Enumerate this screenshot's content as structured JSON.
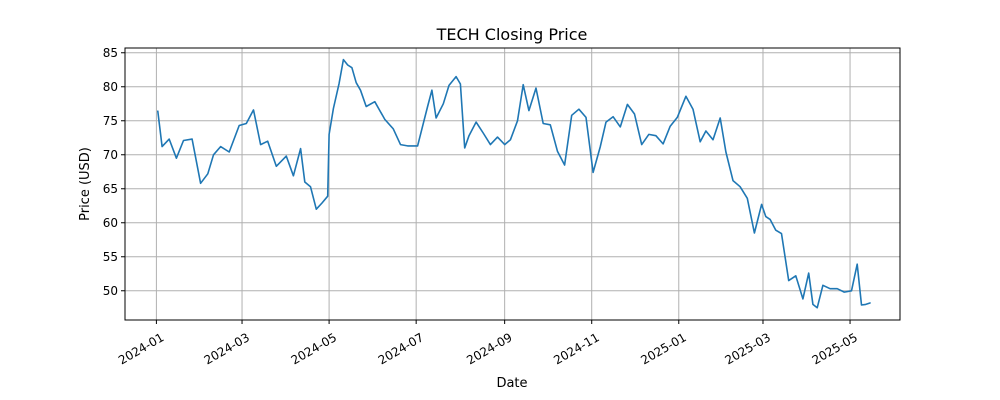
{
  "chart_data": {
    "type": "line",
    "title": "TECH Closing Price",
    "xlabel": "Date",
    "ylabel": "Price (USD)",
    "xlim": [
      "2023-12-10",
      "2025-06-05"
    ],
    "ylim": [
      45.7,
      85.7
    ],
    "x_ticks": [
      "2024-01",
      "2024-03",
      "2024-05",
      "2024-07",
      "2024-09",
      "2024-11",
      "2025-01",
      "2025-03",
      "2025-05"
    ],
    "y_ticks": [
      50,
      55,
      60,
      65,
      70,
      75,
      80,
      85
    ],
    "grid": true,
    "legend": "none",
    "series": [
      {
        "color": "#1f77b4",
        "x": [
          "2024-01-02",
          "2024-01-05",
          "2024-01-10",
          "2024-01-15",
          "2024-01-20",
          "2024-01-26",
          "2024-02-01",
          "2024-02-06",
          "2024-02-10",
          "2024-02-15",
          "2024-02-21",
          "2024-02-28",
          "2024-03-04",
          "2024-03-09",
          "2024-03-14",
          "2024-03-19",
          "2024-03-25",
          "2024-04-01",
          "2024-04-06",
          "2024-04-11",
          "2024-04-14",
          "2024-04-18",
          "2024-04-22",
          "2024-04-26",
          "2024-04-30",
          "2024-05-01",
          "2024-05-04",
          "2024-05-08",
          "2024-05-11",
          "2024-05-14",
          "2024-05-17",
          "2024-05-20",
          "2024-05-23",
          "2024-05-27",
          "2024-06-02",
          "2024-06-09",
          "2024-06-15",
          "2024-06-20",
          "2024-06-25",
          "2024-07-02",
          "2024-07-09",
          "2024-07-12",
          "2024-07-15",
          "2024-07-20",
          "2024-07-24",
          "2024-07-29",
          "2024-08-01",
          "2024-08-04",
          "2024-08-07",
          "2024-08-12",
          "2024-08-17",
          "2024-08-22",
          "2024-08-27",
          "2024-09-01",
          "2024-09-05",
          "2024-09-10",
          "2024-09-14",
          "2024-09-18",
          "2024-09-23",
          "2024-09-28",
          "2024-10-03",
          "2024-10-08",
          "2024-10-13",
          "2024-10-18",
          "2024-10-23",
          "2024-10-28",
          "2024-11-02",
          "2024-11-07",
          "2024-11-11",
          "2024-11-16",
          "2024-11-21",
          "2024-11-26",
          "2024-12-01",
          "2024-12-06",
          "2024-12-11",
          "2024-12-16",
          "2024-12-21",
          "2024-12-26",
          "2024-12-31",
          "2025-01-06",
          "2025-01-11",
          "2025-01-16",
          "2025-01-20",
          "2025-01-25",
          "2025-01-30",
          "2025-02-03",
          "2025-02-08",
          "2025-02-13",
          "2025-02-18",
          "2025-02-23",
          "2025-02-28",
          "2025-03-03",
          "2025-03-06",
          "2025-03-10",
          "2025-03-14",
          "2025-03-19",
          "2025-03-24",
          "2025-03-29",
          "2025-04-02",
          "2025-04-05",
          "2025-04-08",
          "2025-04-12",
          "2025-04-17",
          "2025-04-22",
          "2025-04-27",
          "2025-05-02",
          "2025-05-06",
          "2025-05-09",
          "2025-05-12",
          "2025-05-15"
        ],
        "values": [
          76.4,
          71.2,
          72.3,
          69.5,
          72.1,
          72.3,
          65.8,
          67.2,
          70.0,
          71.2,
          70.4,
          74.3,
          74.6,
          76.6,
          71.5,
          72.0,
          68.3,
          69.8,
          66.9,
          70.9,
          66.0,
          65.3,
          62.0,
          62.9,
          63.9,
          73.0,
          76.8,
          80.5,
          84.0,
          83.2,
          82.8,
          80.6,
          79.5,
          77.1,
          77.8,
          75.2,
          73.8,
          71.5,
          71.3,
          71.3,
          77.1,
          79.5,
          75.4,
          77.5,
          80.2,
          81.5,
          80.4,
          71.0,
          72.8,
          74.8,
          73.2,
          71.5,
          72.6,
          71.5,
          72.2,
          75.0,
          80.3,
          76.5,
          79.8,
          74.6,
          74.4,
          70.5,
          68.5,
          75.8,
          76.7,
          75.5,
          67.4,
          71.2,
          74.8,
          75.6,
          74.1,
          77.4,
          76.0,
          71.5,
          73.0,
          72.8,
          71.6,
          74.2,
          75.5,
          78.6,
          76.7,
          71.9,
          73.5,
          72.2,
          75.4,
          70.4,
          66.2,
          65.3,
          63.6,
          58.5,
          62.7,
          60.9,
          60.5,
          58.9,
          58.4,
          51.5,
          52.2,
          48.8,
          52.6,
          48.0,
          47.5,
          50.8,
          50.3,
          50.3,
          49.8,
          50.0,
          53.9,
          47.9,
          48.0,
          48.2
        ]
      }
    ]
  }
}
